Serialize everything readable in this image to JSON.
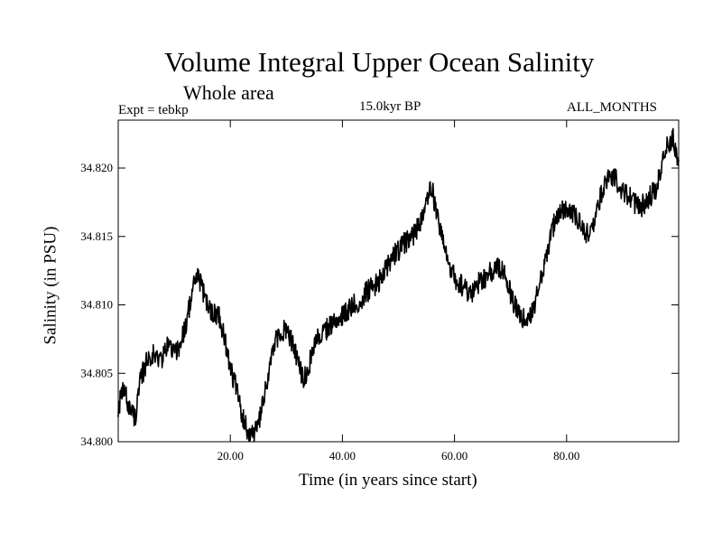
{
  "chart_data": {
    "type": "line",
    "title": "Volume Integral Upper Ocean Salinity",
    "subtitle": "Whole area",
    "experiment_label": "Expt = tebkp",
    "period_label": "15.0kyr BP",
    "months_label": "ALL_MONTHS",
    "xlabel": "Time (in years since start)",
    "ylabel": "Salinity (in PSU)",
    "xlim": [
      0,
      100
    ],
    "ylim": [
      34.8,
      34.8235
    ],
    "x_ticks": [
      {
        "value": 20,
        "label": "20.00"
      },
      {
        "value": 40,
        "label": "40.00"
      },
      {
        "value": 60,
        "label": "60.00"
      },
      {
        "value": 80,
        "label": "80.00"
      }
    ],
    "y_ticks": [
      {
        "value": 34.8,
        "label": "34.800"
      },
      {
        "value": 34.805,
        "label": "34.805"
      },
      {
        "value": 34.81,
        "label": "34.810"
      },
      {
        "value": 34.815,
        "label": "34.815"
      },
      {
        "value": 34.82,
        "label": "34.820"
      }
    ],
    "line_color": "#000000",
    "series": [
      {
        "name": "Salinity",
        "x": [
          0,
          1,
          2,
          3,
          4,
          5,
          6,
          7,
          8,
          9,
          10,
          11,
          12,
          13,
          14,
          15,
          16,
          17,
          18,
          19,
          20,
          21,
          22,
          23,
          24,
          25,
          26,
          27,
          28,
          29,
          30,
          31,
          32,
          33,
          34,
          35,
          36,
          37,
          38,
          39,
          40,
          41,
          42,
          43,
          44,
          45,
          46,
          47,
          48,
          49,
          50,
          51,
          52,
          53,
          54,
          55,
          56,
          57,
          58,
          59,
          60,
          61,
          62,
          63,
          64,
          65,
          66,
          67,
          68,
          69,
          70,
          71,
          72,
          73,
          74,
          75,
          76,
          77,
          78,
          79,
          80,
          81,
          82,
          83,
          84,
          85,
          86,
          87,
          88,
          89,
          90,
          91,
          92,
          93,
          94,
          95,
          96,
          97,
          98,
          99,
          100
        ],
        "values": [
          34.8025,
          34.8038,
          34.8025,
          34.8018,
          34.8045,
          34.8058,
          34.8065,
          34.806,
          34.8062,
          34.8072,
          34.8065,
          34.807,
          34.8085,
          34.8105,
          34.8122,
          34.8112,
          34.8098,
          34.8095,
          34.8092,
          34.8075,
          34.8055,
          34.804,
          34.802,
          34.801,
          34.8005,
          34.8012,
          34.803,
          34.8055,
          34.8072,
          34.808,
          34.8082,
          34.8072,
          34.806,
          34.8045,
          34.8055,
          34.8072,
          34.8078,
          34.8082,
          34.8085,
          34.809,
          34.8092,
          34.8095,
          34.81,
          34.8102,
          34.8108,
          34.8112,
          34.8115,
          34.812,
          34.8128,
          34.8135,
          34.814,
          34.8145,
          34.8148,
          34.8152,
          34.8162,
          34.8178,
          34.8185,
          34.8165,
          34.8145,
          34.8128,
          34.812,
          34.8115,
          34.8112,
          34.8108,
          34.8115,
          34.8118,
          34.8122,
          34.8125,
          34.8128,
          34.8122,
          34.8108,
          34.8098,
          34.8092,
          34.8085,
          34.8095,
          34.8112,
          34.813,
          34.8148,
          34.8162,
          34.8168,
          34.817,
          34.8168,
          34.8162,
          34.8155,
          34.815,
          34.8162,
          34.8178,
          34.8188,
          34.8195,
          34.819,
          34.8182,
          34.818,
          34.8175,
          34.817,
          34.8175,
          34.818,
          34.8185,
          34.82,
          34.8218,
          34.8222,
          34.8205
        ]
      }
    ]
  }
}
